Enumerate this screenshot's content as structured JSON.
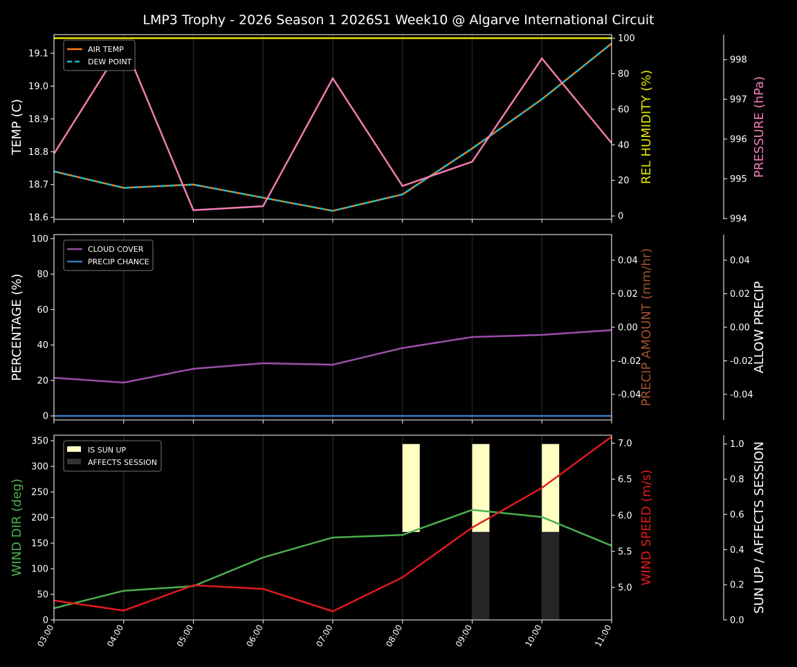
{
  "title": "LMP3 Trophy - 2026 Season 1 2026S1 Week10 @ Algarve International Circuit",
  "chart_data": [
    {
      "type": "line",
      "x": [
        "03:00",
        "04:00",
        "05:00",
        "06:00",
        "07:00",
        "08:00",
        "09:00",
        "10:00",
        "11:00"
      ],
      "grid": "vertical",
      "legend_placement": "top-left",
      "axes": {
        "left": {
          "label": "TEMP (C)",
          "range": [
            18.594,
            19.157
          ],
          "ticks": [
            18.6,
            18.7,
            18.8,
            18.9,
            19.0,
            19.1
          ],
          "color": "#ffffff"
        },
        "right": {
          "label": "REL HUMIDITY (%)",
          "range": [
            -1.9,
            102
          ],
          "ticks": [
            0,
            20,
            40,
            60,
            80,
            100
          ],
          "color": "#e6e600"
        },
        "right2": {
          "label": "PRESSURE (hPa)",
          "range": [
            993.98,
            998.63
          ],
          "ticks": [
            994,
            995,
            996,
            997,
            998
          ],
          "color": "#f07cb4"
        }
      },
      "series": [
        {
          "name": "AIR TEMP",
          "axis": "left",
          "color": "#ff7f0e",
          "style": "solid",
          "legend": true,
          "values": [
            18.74,
            18.69,
            18.7,
            18.66,
            18.62,
            18.67,
            18.81,
            18.96,
            19.13
          ]
        },
        {
          "name": "DEW POINT",
          "axis": "left",
          "color": "#17becf",
          "style": "dashed",
          "legend": true,
          "values": [
            18.74,
            18.69,
            18.7,
            18.66,
            18.62,
            18.67,
            18.81,
            18.96,
            19.13
          ]
        },
        {
          "axis": "right",
          "color": "#e6e600",
          "style": "solid",
          "legend": false,
          "values": [
            100,
            100,
            100,
            100,
            100,
            100,
            100,
            100,
            100
          ]
        },
        {
          "axis": "right2",
          "color": "#f07cb4",
          "style": "solid",
          "legend": false,
          "values": [
            995.63,
            998.42,
            994.21,
            994.31,
            997.53,
            994.82,
            995.43,
            998.03,
            995.9
          ]
        }
      ]
    },
    {
      "type": "line",
      "x": [
        "03:00",
        "04:00",
        "05:00",
        "06:00",
        "07:00",
        "08:00",
        "09:00",
        "10:00",
        "11:00"
      ],
      "grid": "vertical",
      "legend_placement": "top-left",
      "axes": {
        "left": {
          "label": "PERCENTAGE (%)",
          "range": [
            -2.3,
            102.3
          ],
          "ticks": [
            0,
            20,
            40,
            60,
            80,
            100
          ],
          "color": "#ffffff"
        },
        "right": {
          "label": "PRECIP AMOUNT (mm/hr)",
          "range": [
            -0.0553,
            0.0553
          ],
          "ticks": [
            -0.04,
            -0.02,
            0.0,
            0.02,
            0.04
          ],
          "color": "#a0522d"
        },
        "right2": {
          "label": "ALLOW PRECIP",
          "range": [
            -0.0553,
            0.0553
          ],
          "ticks": [
            -0.04,
            -0.02,
            0.0,
            0.02,
            0.04
          ],
          "color": "#ffffff"
        }
      },
      "series": [
        {
          "name": "CLOUD COVER",
          "axis": "left",
          "color": "#9b4fa8",
          "style": "solid",
          "legend": true,
          "values": [
            21.5,
            18.8,
            26.6,
            29.7,
            28.9,
            38.3,
            44.5,
            45.7,
            48.4
          ]
        },
        {
          "name": "PRECIP CHANCE",
          "axis": "left",
          "color": "#3a78c2",
          "style": "solid",
          "legend": true,
          "values": [
            0,
            0,
            0,
            0,
            0,
            0,
            0,
            0,
            0
          ]
        }
      ]
    },
    {
      "type": "line",
      "x": [
        "03:00",
        "04:00",
        "05:00",
        "06:00",
        "07:00",
        "08:00",
        "09:00",
        "10:00",
        "11:00"
      ],
      "grid": "vertical",
      "legend_placement": "top-left",
      "axes": {
        "left": {
          "label": "WIND DIR (deg)",
          "range": [
            0,
            360.8
          ],
          "ticks": [
            0,
            50,
            100,
            150,
            200,
            250,
            300,
            350
          ],
          "color": "#4caf50"
        },
        "right": {
          "label": "WIND SPEED (m/s)",
          "range": [
            4.55,
            7.11
          ],
          "ticks": [
            5.0,
            5.5,
            6.0,
            6.5,
            7.0
          ],
          "color": "#e31a1c"
        },
        "right2": {
          "label": "SUN UP / AFFECTS SESSION",
          "range": [
            0,
            1.05
          ],
          "ticks": [
            0.0,
            0.2,
            0.4,
            0.6,
            0.8,
            1.0
          ],
          "color": "#ffffff"
        }
      },
      "bars": [
        {
          "name": "IS SUN UP",
          "axis": "right2",
          "color": "#ffffc4",
          "values": [
            0,
            0,
            0,
            0,
            0,
            0.5,
            0.5,
            0.5,
            0
          ],
          "bottom": 0.5
        },
        {
          "name": "AFFECTS SESSION",
          "axis": "right2",
          "color": "#252525",
          "values": [
            0,
            0,
            0,
            0,
            0,
            0,
            0.5,
            0.5,
            0
          ],
          "bottom": 0
        }
      ],
      "series": [
        {
          "axis": "left",
          "color": "#4caf50",
          "style": "solid",
          "legend": false,
          "values": [
            23,
            57,
            66,
            122,
            161,
            166,
            215,
            201,
            145
          ]
        },
        {
          "axis": "right",
          "color": "#e31a1c",
          "style": "solid",
          "legend": false,
          "values": [
            4.82,
            4.68,
            5.03,
            4.98,
            4.67,
            5.14,
            5.83,
            6.38,
            7.09
          ]
        }
      ]
    }
  ]
}
